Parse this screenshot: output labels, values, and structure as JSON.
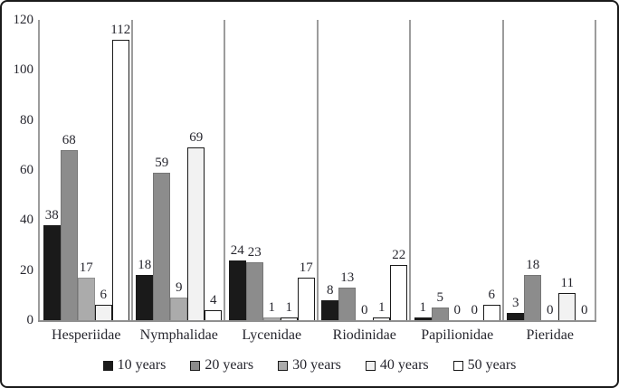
{
  "figure": {
    "background_color": "#ffffff",
    "frame_color": "#1a1a1a",
    "axis_line_color": "#9c9c9c",
    "text_color": "#26262e"
  },
  "chart_data": {
    "type": "bar",
    "title": "",
    "xlabel": "",
    "ylabel": "",
    "categories": [
      "Hesperiidae",
      "Nymphalidae",
      "Lycenidae",
      "Riodinidae",
      "Papilionidae",
      "Pieridae"
    ],
    "series": [
      {
        "name": "10 years",
        "values": [
          38,
          18,
          24,
          8,
          1,
          3
        ],
        "fill": "#1a1a1a",
        "border": "#1a1a1a"
      },
      {
        "name": "20 years",
        "values": [
          68,
          59,
          23,
          13,
          5,
          18
        ],
        "fill": "#8c8c8c",
        "border": "#767676"
      },
      {
        "name": "30 years",
        "values": [
          17,
          9,
          1,
          0,
          0,
          0
        ],
        "fill": "#ababab",
        "border": "#8f8f8f"
      },
      {
        "name": "40 years",
        "values": [
          6,
          69,
          1,
          1,
          0,
          11
        ],
        "fill": "#f2f2f2",
        "border": "#1a1a1a"
      },
      {
        "name": "50 years",
        "values": [
          112,
          4,
          17,
          22,
          6,
          0
        ],
        "fill": "#ffffff",
        "border": "#1a1a1a"
      }
    ],
    "ylim": [
      0,
      120
    ],
    "yticks": [
      0,
      20,
      40,
      60,
      80,
      100,
      120
    ],
    "grid": "off",
    "bar_value_labels_shown": true,
    "legend_position": "bottom",
    "legend_labels": [
      "10 years",
      "20 years",
      "30 years",
      "40 years",
      "50 years"
    ]
  }
}
